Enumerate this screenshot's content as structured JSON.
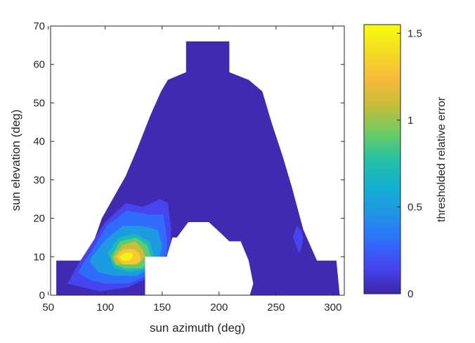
{
  "chart_data": {
    "type": "heatmap",
    "subtype": "filled-contour",
    "title": "",
    "xlabel": "sun azimuth (deg)",
    "ylabel": "sun elevation (deg)",
    "xlim": [
      52,
      310
    ],
    "ylim": [
      0,
      70
    ],
    "x_ticks": [
      50,
      100,
      150,
      200,
      250,
      300
    ],
    "y_ticks": [
      0,
      10,
      20,
      30,
      40,
      50,
      60,
      70
    ],
    "colorbar": {
      "label": "thresholded relative error",
      "min": 0,
      "max": 1.55,
      "ticks": [
        0,
        0.5,
        1,
        1.5
      ],
      "colormap": "parula"
    },
    "background_level": 0.02,
    "domain_outline": [
      [
        57,
        0
      ],
      [
        57,
        9
      ],
      [
        84,
        9
      ],
      [
        97,
        20
      ],
      [
        118,
        31
      ],
      [
        128,
        38
      ],
      [
        140,
        47
      ],
      [
        149,
        53
      ],
      [
        155,
        56
      ],
      [
        171,
        58
      ],
      [
        171,
        66
      ],
      [
        209,
        66
      ],
      [
        209,
        58
      ],
      [
        226,
        56
      ],
      [
        238,
        53
      ],
      [
        246,
        45
      ],
      [
        256,
        36
      ],
      [
        264,
        28
      ],
      [
        274,
        17
      ],
      [
        286,
        9
      ],
      [
        303,
        9
      ],
      [
        306,
        0
      ]
    ],
    "no_data_region": [
      [
        135,
        0
      ],
      [
        135,
        10
      ],
      [
        154,
        10
      ],
      [
        159,
        15
      ],
      [
        163,
        15
      ],
      [
        173,
        19
      ],
      [
        191,
        19
      ],
      [
        202,
        16
      ],
      [
        209,
        14
      ],
      [
        219,
        14
      ],
      [
        226,
        9
      ],
      [
        230,
        3
      ],
      [
        227,
        0
      ]
    ],
    "error_contours": [
      {
        "level": 0.15,
        "polygon": [
          [
            67,
            3
          ],
          [
            76,
            8
          ],
          [
            87,
            13
          ],
          [
            100,
            19
          ],
          [
            118,
            24
          ],
          [
            133,
            23
          ],
          [
            148,
            25
          ],
          [
            155,
            24
          ],
          [
            158,
            17
          ],
          [
            157,
            11
          ],
          [
            154,
            9
          ],
          [
            142,
            5
          ],
          [
            119,
            2
          ],
          [
            95,
            1
          ]
        ]
      },
      {
        "level": 0.3,
        "polygon": [
          [
            76,
            6
          ],
          [
            89,
            12
          ],
          [
            101,
            18
          ],
          [
            119,
            22
          ],
          [
            138,
            21
          ],
          [
            151,
            21
          ],
          [
            154,
            15
          ],
          [
            154,
            11
          ],
          [
            145,
            6
          ],
          [
            120,
            3
          ],
          [
            100,
            3
          ],
          [
            86,
            4
          ]
        ]
      },
      {
        "level": 0.5,
        "polygon": [
          [
            86,
            9
          ],
          [
            99,
            14
          ],
          [
            115,
            18
          ],
          [
            133,
            18
          ],
          [
            146,
            17
          ],
          [
            150,
            13
          ],
          [
            146,
            8
          ],
          [
            128,
            5
          ],
          [
            108,
            5
          ],
          [
            94,
            6
          ]
        ]
      },
      {
        "level": 0.7,
        "polygon": [
          [
            102,
            11
          ],
          [
            112,
            15
          ],
          [
            126,
            16
          ],
          [
            139,
            14
          ],
          [
            143,
            10
          ],
          [
            138,
            7
          ],
          [
            122,
            6
          ],
          [
            108,
            7
          ]
        ]
      },
      {
        "level": 0.9,
        "polygon": [
          [
            105,
            10
          ],
          [
            113,
            14
          ],
          [
            127,
            15
          ],
          [
            137,
            13
          ],
          [
            140,
            10
          ],
          [
            133,
            7
          ],
          [
            117,
            7
          ],
          [
            108,
            8
          ]
        ]
      },
      {
        "level": 1.1,
        "polygon": [
          [
            107,
            10
          ],
          [
            115,
            13
          ],
          [
            126,
            14
          ],
          [
            133,
            12
          ],
          [
            135,
            10
          ],
          [
            129,
            8
          ],
          [
            116,
            8
          ],
          [
            110,
            8
          ]
        ]
      },
      {
        "level": 1.3,
        "polygon": [
          [
            109,
            10
          ],
          [
            116,
            12
          ],
          [
            125,
            12
          ],
          [
            130,
            11
          ],
          [
            131,
            9
          ],
          [
            126,
            8
          ],
          [
            116,
            8
          ]
        ]
      },
      {
        "level": 1.5,
        "polygon": [
          [
            112,
            10
          ],
          [
            117,
            11
          ],
          [
            123,
            11
          ],
          [
            125,
            10
          ],
          [
            121,
            9
          ],
          [
            115,
            9
          ]
        ]
      },
      {
        "level": 0.15,
        "polygon": [
          [
            265,
            15
          ],
          [
            268,
            18
          ],
          [
            272,
            17
          ],
          [
            274,
            15
          ],
          [
            272,
            12
          ],
          [
            270,
            11
          ]
        ]
      }
    ]
  }
}
